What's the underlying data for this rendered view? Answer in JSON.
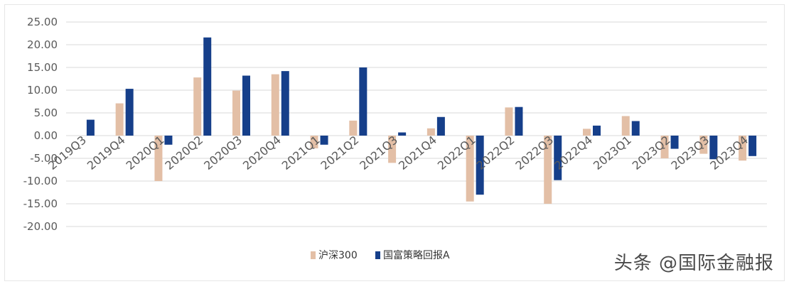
{
  "colors": {
    "hs300": "#e3bfa6",
    "guofu": "#163f8a",
    "grid": "#d9d9d9",
    "tick": "#5a5a5a"
  },
  "watermark": "头条 @国际金融报",
  "chart_data": {
    "type": "bar",
    "categories": [
      "2019Q3",
      "2019Q4",
      "2020Q1",
      "2020Q2",
      "2020Q3",
      "2020Q4",
      "2021Q1",
      "2021Q2",
      "2021Q3",
      "2021Q4",
      "2022Q1",
      "2022Q2",
      "2022Q3",
      "2022Q4",
      "2023Q1",
      "2023Q2",
      "2023Q3",
      "2023Q4"
    ],
    "series": [
      {
        "name": "沪深300",
        "values": [
          0,
          7.1,
          -10.0,
          12.8,
          9.9,
          13.5,
          -2.8,
          3.3,
          -6.0,
          1.6,
          -14.5,
          6.2,
          -15.0,
          1.5,
          4.3,
          -5.0,
          -4.0,
          -5.5
        ]
      },
      {
        "name": "国富策略回报A",
        "values": [
          3.5,
          10.3,
          -2.0,
          21.6,
          13.2,
          14.2,
          -2.0,
          15.0,
          0.7,
          4.1,
          -13.0,
          6.3,
          -9.8,
          2.2,
          3.2,
          -2.9,
          -5.2,
          -4.5
        ]
      }
    ],
    "yticks": [
      "25.00",
      "20.00",
      "15.00",
      "10.00",
      "5.00",
      "0.00",
      "-5.00",
      "-10.00",
      "-15.00",
      "-20.00"
    ],
    "ylim": [
      -20,
      25
    ],
    "grid": true,
    "legend": "bottom-center"
  }
}
